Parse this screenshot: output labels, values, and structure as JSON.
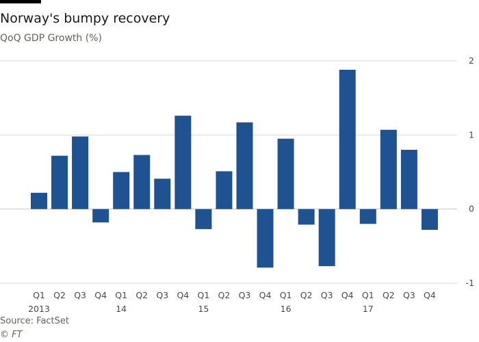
{
  "header": {
    "title": "Norway's bumpy recovery",
    "subtitle": "QoQ GDP Growth (%)"
  },
  "footer": {
    "source": "Source: FactSet",
    "copyright": "© FT"
  },
  "colors": {
    "bar": "#1f5290",
    "grid": "#dcd8d4",
    "zero_line": "#c9c4bf"
  },
  "chart_data": {
    "type": "bar",
    "title": "Norway's bumpy recovery",
    "subtitle": "QoQ GDP Growth (%)",
    "categories": [
      "Q1 2013",
      "Q2 2013",
      "Q3 2013",
      "Q4 2013",
      "Q1 2014",
      "Q2 2014",
      "Q3 2014",
      "Q4 2014",
      "Q1 2015",
      "Q2 2015",
      "Q3 2015",
      "Q4 2015",
      "Q1 2016",
      "Q2 2016",
      "Q3 2016",
      "Q4 2016",
      "Q1 2017",
      "Q2 2017",
      "Q3 2017",
      "Q4 2017"
    ],
    "quarter_labels": [
      "Q1",
      "Q2",
      "Q3",
      "Q4",
      "Q1",
      "Q2",
      "Q3",
      "Q4",
      "Q1",
      "Q2",
      "Q3",
      "Q4",
      "Q1",
      "Q2",
      "Q3",
      "Q4",
      "Q1",
      "Q2",
      "Q3",
      "Q4"
    ],
    "year_labels": [
      "2013",
      "",
      "",
      "",
      "14",
      "",
      "",
      "",
      "15",
      "",
      "",
      "",
      "16",
      "",
      "",
      "",
      "17",
      "",
      "",
      ""
    ],
    "values": [
      0.22,
      0.72,
      0.98,
      -0.18,
      0.5,
      0.73,
      0.41,
      1.26,
      -0.27,
      0.51,
      1.17,
      -0.79,
      0.95,
      -0.21,
      -0.77,
      1.88,
      -0.2,
      1.07,
      0.8,
      -0.28
    ],
    "ylim": [
      -1,
      2
    ],
    "yticks": [
      -1,
      0,
      1,
      2
    ],
    "ytick_labels": [
      "-1",
      "0",
      "1",
      "2"
    ],
    "grid": true,
    "yaxis_position": "right"
  }
}
